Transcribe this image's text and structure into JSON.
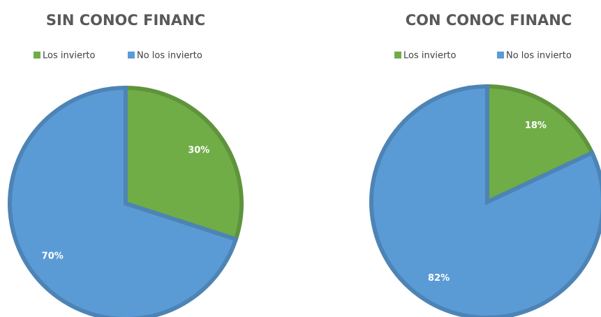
{
  "chart_data": [
    {
      "type": "pie",
      "title": "SIN CONOC FINANC",
      "categories": [
        "Los invierto",
        "No los invierto"
      ],
      "values": [
        30,
        70
      ],
      "value_labels": [
        "30%",
        "70%"
      ],
      "colors": [
        "#70ad47",
        "#5b9bd5"
      ]
    },
    {
      "type": "pie",
      "title": "CON CONOC FINANC",
      "categories": [
        "Los invierto",
        "No los invierto"
      ],
      "values": [
        18,
        82
      ],
      "value_labels": [
        "18%",
        "82%"
      ],
      "colors": [
        "#70ad47",
        "#5b9bd5"
      ]
    }
  ]
}
